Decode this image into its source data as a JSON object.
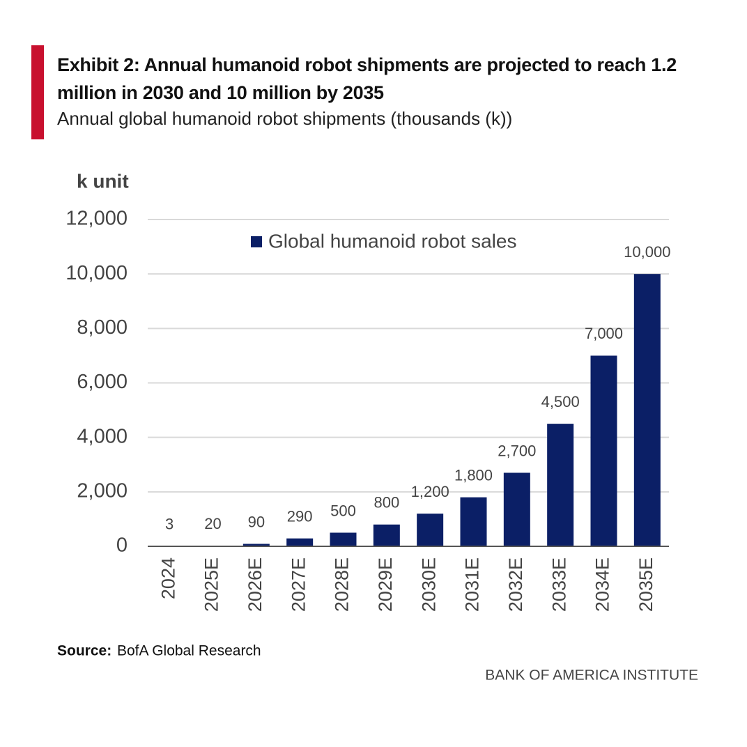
{
  "chart_data": {
    "type": "bar",
    "title": "Exhibit 2: Annual humanoid robot shipments are projected to reach 1.2 million in 2030 and 10 million by 2035",
    "subtitle": "Annual global humanoid robot shipments (thousands (k))",
    "y_label": "k unit",
    "categories": [
      "2024",
      "2025E",
      "2026E",
      "2027E",
      "2028E",
      "2029E",
      "2030E",
      "2031E",
      "2032E",
      "2033E",
      "2034E",
      "2035E"
    ],
    "series": [
      {
        "name": "Global humanoid robot sales",
        "color": "#0b1f66",
        "values": [
          3,
          20,
          90,
          290,
          500,
          800,
          1200,
          1800,
          2700,
          4500,
          7000,
          10000
        ],
        "value_labels": [
          "3",
          "20",
          "90",
          "290",
          "500",
          "800",
          "1,200",
          "1,800",
          "2,700",
          "4,500",
          "7,000",
          "10,000"
        ]
      }
    ],
    "ylim": [
      0,
      12000
    ],
    "yticks": [
      0,
      {
        "value": 2000,
        "label": "2,000"
      },
      {
        "value": 4000,
        "label": "4,000"
      },
      {
        "value": 6000,
        "label": "6,000"
      },
      {
        "value": 8000,
        "label": "8,000"
      },
      {
        "value": 10000,
        "label": "10,000"
      },
      {
        "value": 12000,
        "label": "12,000"
      }
    ],
    "grid": true,
    "legend": "top",
    "source_label": "Source:",
    "source": "BofA Global Research",
    "footer": "BANK OF AMERICA INSTITUTE"
  }
}
